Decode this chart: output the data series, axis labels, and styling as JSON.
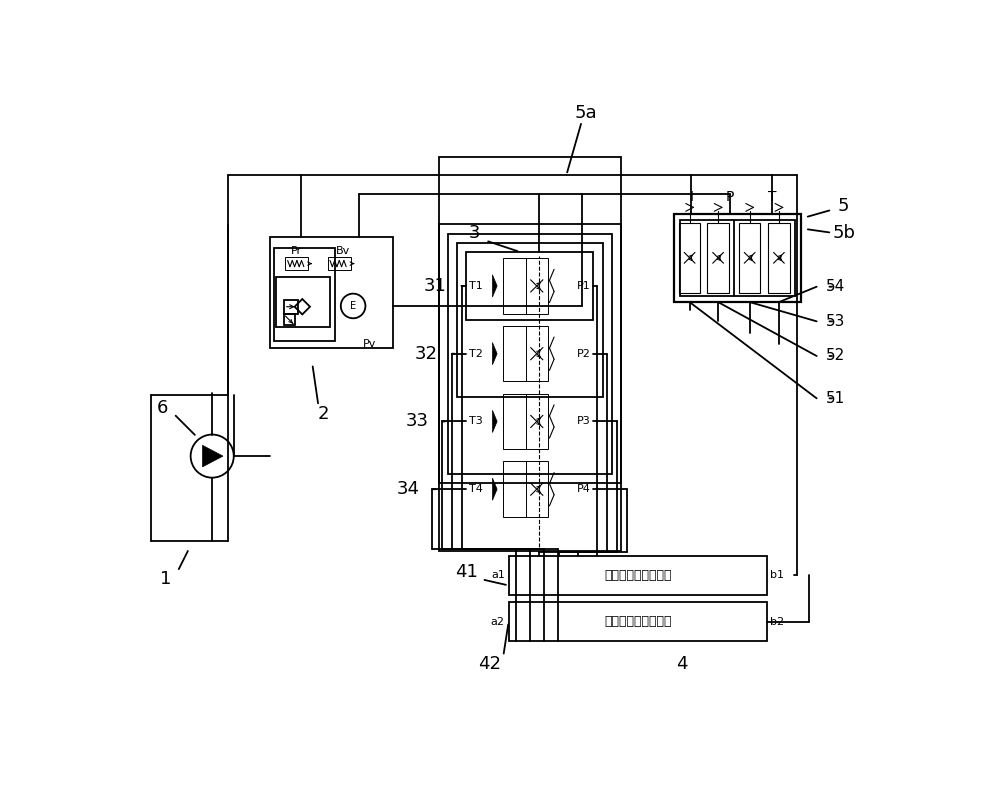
{
  "bg_color": "#ffffff",
  "line_color": "#000000",
  "labels": {
    "label_1": "1",
    "label_2": "2",
    "label_3": "3",
    "label_4": "4",
    "label_5": "5",
    "label_5a": "5a",
    "label_5b": "5b",
    "label_6": "6",
    "label_31": "31",
    "label_32": "32",
    "label_33": "33",
    "label_34": "34",
    "label_41": "41",
    "label_42": "42",
    "label_51": "51",
    "label_52": "52",
    "label_53": "53",
    "label_54": "54",
    "label_T1": "T1",
    "label_T2": "T2",
    "label_T3": "T3",
    "label_T4": "T4",
    "label_P1": "P1",
    "label_P2": "P2",
    "label_P3": "P3",
    "label_P4": "P4",
    "label_Pr": "Pr",
    "label_Bv": "Bv",
    "label_Pv": "Pv",
    "label_I": "I",
    "label_P": "P",
    "label_T": "T",
    "label_a1": "a1",
    "label_a2": "a2",
    "label_b1": "b1",
    "label_b2": "b2",
    "label_left_track": "左履带行走控制阀片",
    "label_right_track": "右履带行走控制阀片"
  }
}
